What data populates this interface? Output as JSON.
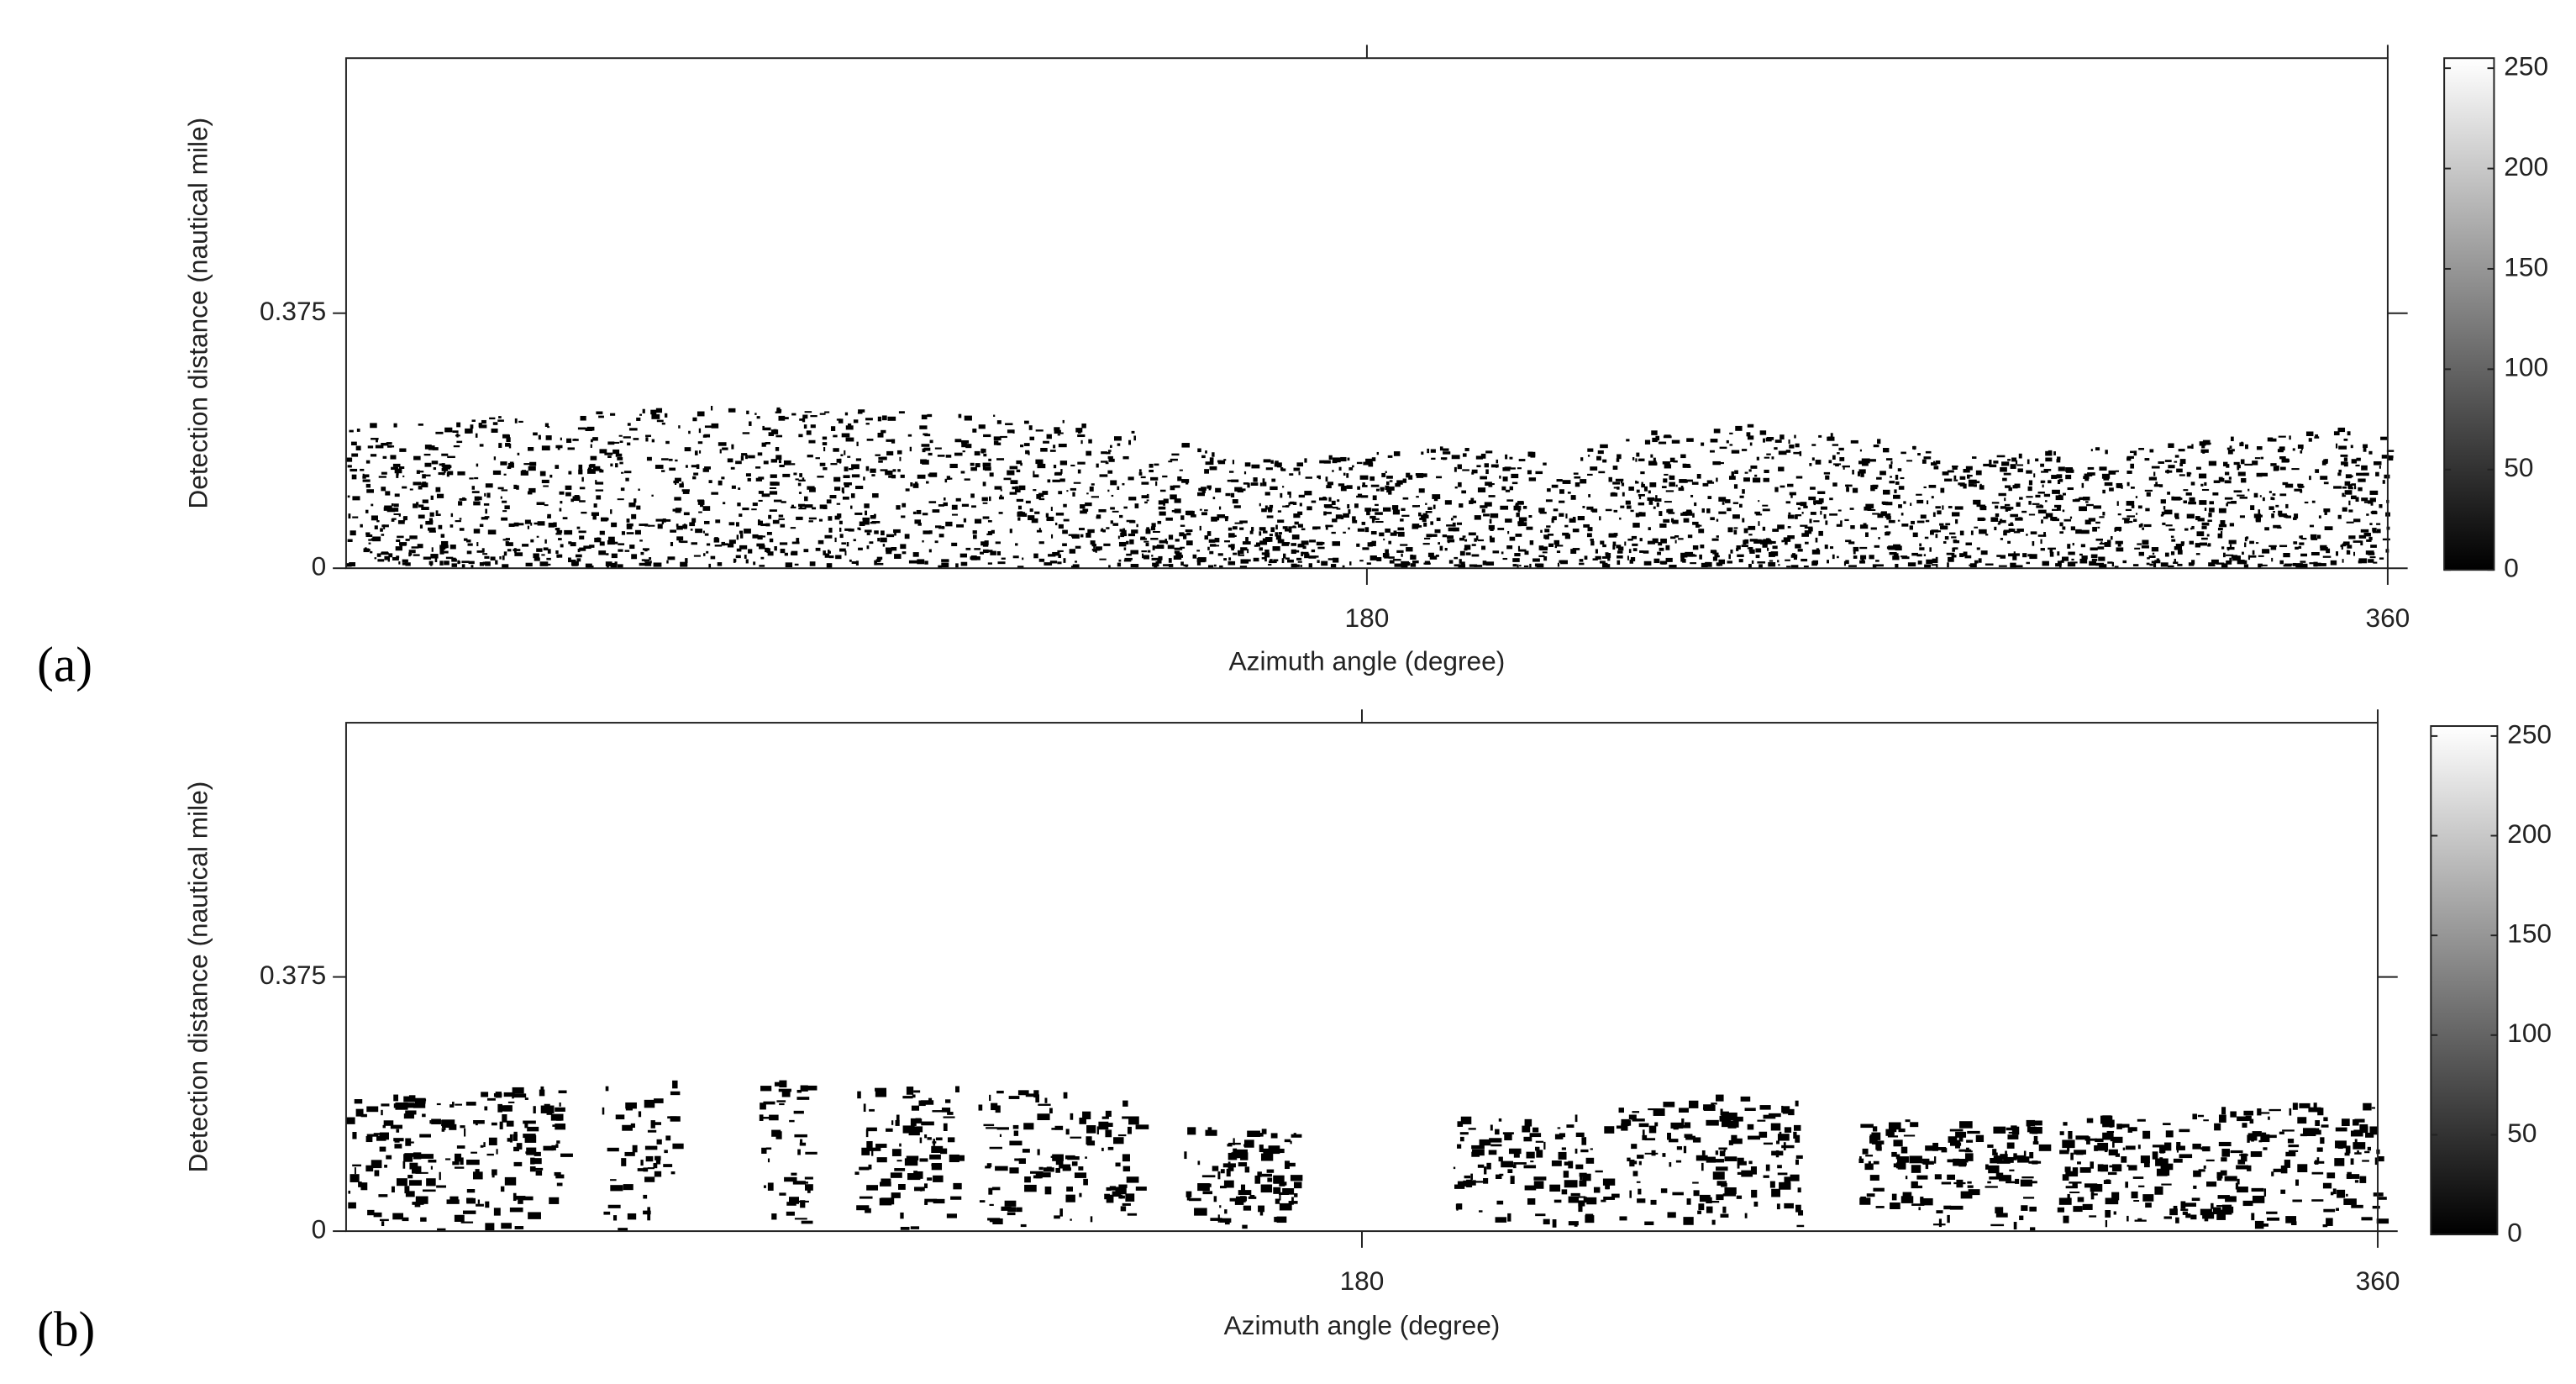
{
  "chart_data": [
    {
      "type": "heatmap",
      "panel_label": "(a)",
      "xlabel": "Azimuth angle (degree)",
      "ylabel": "Detection distance (nautical mile)",
      "xlim": [
        0,
        360
      ],
      "xticks": [
        180,
        360
      ],
      "ylim": [
        0,
        0.75
      ],
      "yticks": [
        0,
        0.375
      ],
      "colormap": [
        "#000000",
        "#ffffff"
      ],
      "colorbar": {
        "lim": [
          0,
          255
        ],
        "ticks": [
          0,
          50,
          100,
          150,
          200,
          250
        ]
      }
    },
    {
      "type": "heatmap",
      "panel_label": "(b)",
      "xlabel": "Azimuth angle (degree)",
      "ylabel": "Detection distance (nautical mile)",
      "xlim": [
        0,
        360
      ],
      "xticks": [
        180,
        360
      ],
      "ylim": [
        0,
        0.75
      ],
      "yticks": [
        0,
        0.375
      ],
      "colormap": [
        "#000000",
        "#ffffff"
      ],
      "colorbar": {
        "lim": [
          0,
          255
        ],
        "ticks": [
          0,
          50,
          100,
          150,
          200,
          250
        ]
      }
    }
  ]
}
